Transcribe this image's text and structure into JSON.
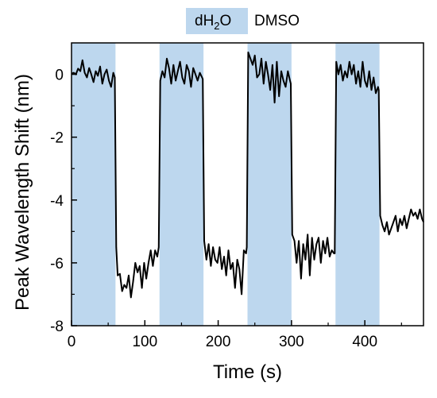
{
  "chart_data": {
    "type": "line",
    "title": "",
    "xlabel": "Time (s)",
    "ylabel": "Peak Wavelength Shift (nm)",
    "xlim": [
      0,
      480
    ],
    "ylim": [
      -8,
      1
    ],
    "x_ticks": [
      0,
      100,
      200,
      300,
      400
    ],
    "y_ticks": [
      0,
      -2,
      -4,
      -6,
      -8
    ],
    "x_tick_labels": [
      "0",
      "100",
      "200",
      "300",
      "400"
    ],
    "y_tick_labels": [
      "0",
      "-2",
      "-4",
      "-6",
      "-8"
    ],
    "grid": false,
    "legend_position": "top",
    "legend": [
      {
        "label_main": "dH",
        "label_sub": "2",
        "label_tail": "O",
        "color": "#bdd7ee"
      },
      {
        "label": "DMSO",
        "color": "#ffffff"
      }
    ],
    "shaded_regions": [
      {
        "x_start": 0,
        "x_end": 60,
        "label": "dH2O",
        "color": "#bdd7ee"
      },
      {
        "x_start": 120,
        "x_end": 180,
        "label": "dH2O",
        "color": "#bdd7ee"
      },
      {
        "x_start": 240,
        "x_end": 300,
        "label": "dH2O",
        "color": "#bdd7ee"
      },
      {
        "x_start": 360,
        "x_end": 420,
        "label": "dH2O",
        "color": "#bdd7ee"
      }
    ],
    "series": [
      {
        "color": "#000000",
        "points": [
          [
            0,
            0.02
          ],
          [
            3,
            0.05
          ],
          [
            6,
            0.0
          ],
          [
            9,
            0.18
          ],
          [
            12,
            0.1
          ],
          [
            15,
            0.45
          ],
          [
            18,
            0.05
          ],
          [
            21,
            -0.1
          ],
          [
            24,
            0.2
          ],
          [
            27,
            0.0
          ],
          [
            30,
            -0.25
          ],
          [
            33,
            0.1
          ],
          [
            36,
            -0.05
          ],
          [
            39,
            0.25
          ],
          [
            42,
            -0.3
          ],
          [
            45,
            0.0
          ],
          [
            48,
            0.15
          ],
          [
            51,
            -0.2
          ],
          [
            54,
            -0.4
          ],
          [
            57,
            0.05
          ],
          [
            59,
            -0.1
          ],
          [
            61,
            -5.5
          ],
          [
            63,
            -6.4
          ],
          [
            66,
            -6.35
          ],
          [
            69,
            -6.9
          ],
          [
            72,
            -6.7
          ],
          [
            75,
            -6.8
          ],
          [
            78,
            -6.4
          ],
          [
            81,
            -7.1
          ],
          [
            84,
            -6.6
          ],
          [
            87,
            -6.0
          ],
          [
            90,
            -6.3
          ],
          [
            93,
            -6.1
          ],
          [
            96,
            -6.8
          ],
          [
            99,
            -6.0
          ],
          [
            102,
            -6.5
          ],
          [
            105,
            -6.0
          ],
          [
            108,
            -5.6
          ],
          [
            111,
            -6.1
          ],
          [
            114,
            -5.6
          ],
          [
            117,
            -5.8
          ],
          [
            119,
            -5.5
          ],
          [
            121,
            -0.2
          ],
          [
            124,
            0.1
          ],
          [
            127,
            -0.1
          ],
          [
            130,
            0.5
          ],
          [
            133,
            0.2
          ],
          [
            136,
            -0.3
          ],
          [
            139,
            0.3
          ],
          [
            142,
            -0.2
          ],
          [
            145,
            0.1
          ],
          [
            148,
            0.4
          ],
          [
            151,
            -0.1
          ],
          [
            154,
            -0.3
          ],
          [
            157,
            0.3
          ],
          [
            160,
            0.1
          ],
          [
            163,
            -0.4
          ],
          [
            166,
            0.2
          ],
          [
            169,
            0.0
          ],
          [
            172,
            -0.2
          ],
          [
            175,
            0.05
          ],
          [
            178,
            -0.1
          ],
          [
            179,
            -0.15
          ],
          [
            181,
            -5.3
          ],
          [
            184,
            -5.9
          ],
          [
            187,
            -5.4
          ],
          [
            190,
            -6.1
          ],
          [
            193,
            -5.5
          ],
          [
            196,
            -5.9
          ],
          [
            199,
            -6.0
          ],
          [
            202,
            -5.5
          ],
          [
            205,
            -6.2
          ],
          [
            208,
            -5.8
          ],
          [
            211,
            -6.4
          ],
          [
            214,
            -5.6
          ],
          [
            217,
            -6.2
          ],
          [
            220,
            -6.0
          ],
          [
            223,
            -6.8
          ],
          [
            226,
            -5.9
          ],
          [
            229,
            -6.2
          ],
          [
            232,
            -7.0
          ],
          [
            235,
            -5.6
          ],
          [
            238,
            -5.7
          ],
          [
            239,
            -5.5
          ],
          [
            241,
            0.7
          ],
          [
            244,
            0.5
          ],
          [
            247,
            0.3
          ],
          [
            250,
            0.6
          ],
          [
            253,
            -0.1
          ],
          [
            256,
            0.0
          ],
          [
            259,
            0.5
          ],
          [
            262,
            -0.3
          ],
          [
            265,
            0.4
          ],
          [
            268,
            0.0
          ],
          [
            271,
            -0.5
          ],
          [
            274,
            0.3
          ],
          [
            277,
            -0.9
          ],
          [
            280,
            0.4
          ],
          [
            283,
            -0.7
          ],
          [
            286,
            0.1
          ],
          [
            289,
            -0.2
          ],
          [
            292,
            -0.4
          ],
          [
            295,
            0.1
          ],
          [
            298,
            -0.2
          ],
          [
            299,
            -0.3
          ],
          [
            301,
            -5.1
          ],
          [
            304,
            -5.3
          ],
          [
            307,
            -6.0
          ],
          [
            310,
            -5.3
          ],
          [
            313,
            -6.5
          ],
          [
            316,
            -5.4
          ],
          [
            319,
            -5.9
          ],
          [
            322,
            -5.1
          ],
          [
            325,
            -6.4
          ],
          [
            328,
            -5.2
          ],
          [
            331,
            -5.9
          ],
          [
            334,
            -5.4
          ],
          [
            337,
            -5.2
          ],
          [
            340,
            -6.0
          ],
          [
            343,
            -5.3
          ],
          [
            346,
            -5.7
          ],
          [
            349,
            -5.2
          ],
          [
            352,
            -5.8
          ],
          [
            355,
            -5.6
          ],
          [
            358,
            -5.7
          ],
          [
            359,
            -5.7
          ],
          [
            361,
            0.4
          ],
          [
            364,
            0.0
          ],
          [
            367,
            0.3
          ],
          [
            370,
            -0.2
          ],
          [
            373,
            0.1
          ],
          [
            376,
            -0.1
          ],
          [
            379,
            0.4
          ],
          [
            382,
            0.0
          ],
          [
            385,
            0.3
          ],
          [
            388,
            -0.3
          ],
          [
            391,
            0.1
          ],
          [
            394,
            -0.4
          ],
          [
            397,
            0.4
          ],
          [
            400,
            -0.2
          ],
          [
            403,
            -0.4
          ],
          [
            406,
            0.1
          ],
          [
            409,
            -0.5
          ],
          [
            412,
            -0.1
          ],
          [
            415,
            -0.6
          ],
          [
            418,
            -0.4
          ],
          [
            419,
            -0.5
          ],
          [
            421,
            -4.5
          ],
          [
            424,
            -4.8
          ],
          [
            427,
            -5.0
          ],
          [
            430,
            -4.7
          ],
          [
            433,
            -5.1
          ],
          [
            436,
            -4.9
          ],
          [
            439,
            -4.7
          ],
          [
            442,
            -4.5
          ],
          [
            445,
            -5.0
          ],
          [
            448,
            -4.6
          ],
          [
            451,
            -4.8
          ],
          [
            454,
            -4.5
          ],
          [
            457,
            -4.9
          ],
          [
            460,
            -4.6
          ],
          [
            463,
            -4.3
          ],
          [
            466,
            -4.5
          ],
          [
            469,
            -4.4
          ],
          [
            472,
            -4.6
          ],
          [
            475,
            -4.3
          ],
          [
            478,
            -4.6
          ],
          [
            480,
            -4.7
          ]
        ]
      }
    ]
  }
}
